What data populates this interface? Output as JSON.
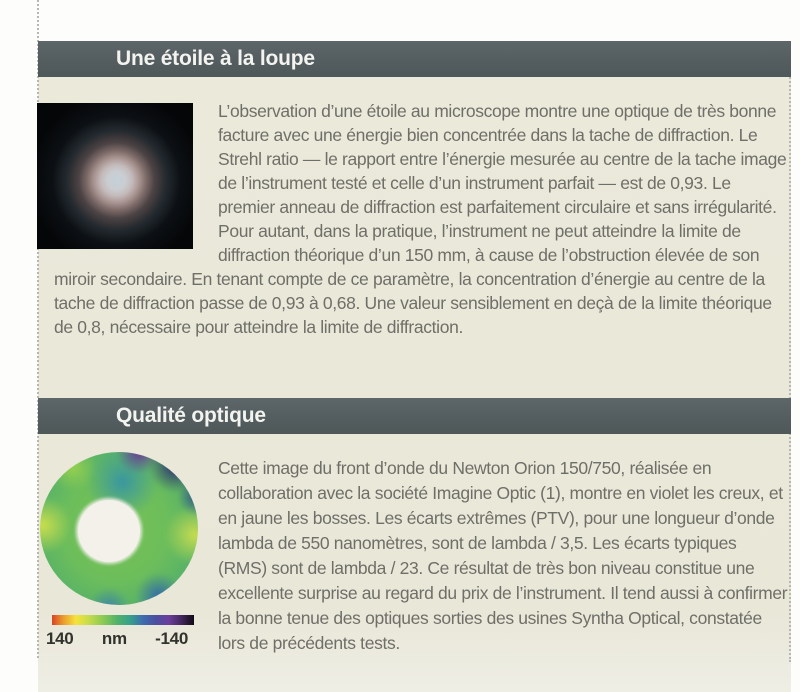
{
  "colors": {
    "header_bar": "#545d5f",
    "page_background": "#e9e7d8",
    "body_text": "#6f6f69",
    "scale_text": "#33332e"
  },
  "sections": [
    {
      "title": "Une étoile à la loupe",
      "figure": "star-diffraction-photo",
      "body": "L’observation d’une étoile au microscope montre une optique de très bonne facture avec une énergie bien concentrée dans la tache de diffraction. Le Strehl ratio — le rapport entre l’énergie mesurée au centre de la tache image de l’instrument testé et celle d’un instrument parfait — est de 0,93. Le premier anneau de diffraction est parfaitement circulaire et sans irrégularité. Pour autant, dans la pratique, l’instrument ne peut atteindre la limite de diffraction théorique d’un 150 mm, à cause de l’obstruction élevée de son miroir secondaire. En tenant compte de ce paramètre, la concentration d’énergie au centre de la tache de diffraction passe de 0,93 à 0,68. Une valeur sensiblement en deçà de la limite théorique de 0,8, nécessaire pour atteindre la limite de diffraction."
    },
    {
      "title": "Qualité optique",
      "figure": "wavefront-map",
      "body": "Cette image du front d’onde du Newton Orion 150/750, réalisée en collaboration avec la société Imagine Optic (1), montre en violet les creux, et en jaune les bosses. Les écarts extrêmes (PTV), pour une longueur d’onde lambda de 550 nanomètres, sont de lambda / 3,5. Les écarts typiques (RMS) sont de lambda / 23. Ce résultat de très bon niveau constitue une excellente surprise au regard du prix de l’instrument. Il tend aussi à confirmer la bonne tenue des optiques sorties des usines Syntha Optical, constatée lors de précédents tests.",
      "scale": {
        "left_label": "140",
        "unit_label": "nm",
        "right_label": "-140"
      }
    }
  ]
}
